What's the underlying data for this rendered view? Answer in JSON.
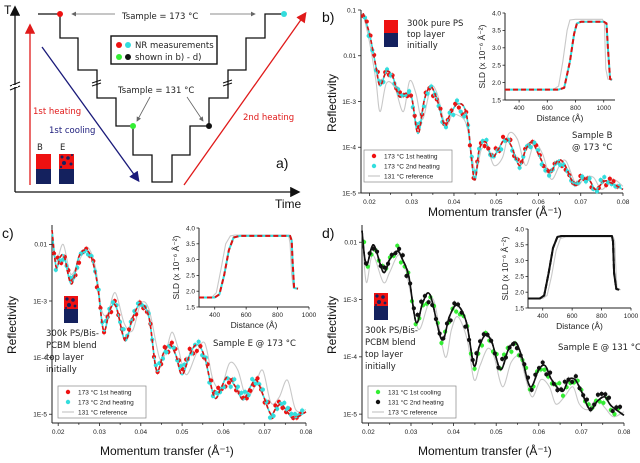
{
  "chart_data": [
    {
      "id": "a",
      "type": "diagram",
      "panel_label": "a)",
      "xlabel": "Time",
      "ylabel": "T",
      "annotations": {
        "t_high": "Tsample = 173 °C",
        "t_low": "Tsample = 131 °C",
        "legend_line1": "NR measurements",
        "legend_line2": "shown in b) - d)",
        "first_heating": "1st heating",
        "first_cooling": "1st cooling",
        "second_heating": "2nd heating",
        "sample_b": "B",
        "sample_e": "E"
      },
      "markers": [
        {
          "name": "173 °C 1st heating",
          "color": "#ee1111"
        },
        {
          "name": "173 °C 2nd heating",
          "color": "#33dddd"
        },
        {
          "name": "131 °C 1st cooling",
          "color": "#33ee33"
        },
        {
          "name": "131 °C 2nd heating",
          "color": "#111111"
        }
      ],
      "colors": {
        "heating": "#e01a1a",
        "cooling": "#1a1a7a",
        "sample_red": "#ee1111",
        "sample_blue": "#14215e"
      }
    },
    {
      "id": "b",
      "type": "line",
      "panel_label": "b)",
      "xlabel": "Momentum transfer (Å⁻¹)",
      "ylabel": "Reflectivity",
      "yscale": "log",
      "xlim": [
        0.018,
        0.08
      ],
      "ylim": [
        1e-05,
        0.1
      ],
      "xticks": [
        "0.02",
        "0.03",
        "0.04",
        "0.05",
        "0.06",
        "0.07",
        "0.08"
      ],
      "yticks": [
        "0.1",
        "0.01",
        "1E-3",
        "1E-4",
        "1E-5"
      ],
      "sample_note": [
        "Sample B",
        "@ 173 °C"
      ],
      "film_note": [
        "300k pure PS",
        "top layer",
        "initially"
      ],
      "film_type": "pure",
      "legend_placement": "bottom-left",
      "series": [
        {
          "name": "173 °C 1st heating",
          "kind": "points+fit",
          "color": "#ee1111",
          "fit": "dashed-red"
        },
        {
          "name": "173 °C 2nd heating",
          "kind": "points+fit",
          "color": "#33dddd",
          "fit": "dashed-cyan"
        },
        {
          "name": "131 °C reference",
          "kind": "line",
          "color": "#c8c8c8"
        }
      ],
      "fit_curve": {
        "x": [
          0.0185,
          0.02,
          0.0215,
          0.0225,
          0.024,
          0.0255,
          0.027,
          0.0285,
          0.03,
          0.0315,
          0.033,
          0.0345,
          0.036,
          0.0378,
          0.039,
          0.041,
          0.043,
          0.0448,
          0.046,
          0.0475,
          0.049,
          0.0505,
          0.052,
          0.0535,
          0.0555,
          0.057,
          0.0585,
          0.06,
          0.0625,
          0.0645,
          0.066,
          0.0685,
          0.07,
          0.072,
          0.0735,
          0.0755,
          0.077,
          0.08
        ],
        "y": [
          0.085,
          0.03,
          0.006,
          0.0022,
          0.0045,
          0.0035,
          0.0013,
          0.0015,
          0.0012,
          0.0002,
          0.0011,
          0.0021,
          0.0011,
          0.0003,
          0.0005,
          0.0009,
          0.0005,
          2e-05,
          9e-05,
          0.00013,
          6e-05,
          9e-05,
          0.00015,
          0.00011,
          4e-05,
          9e-05,
          0.00013,
          7e-05,
          2.8e-05,
          5e-05,
          4.5e-05,
          1.5e-05,
          2e-05,
          1.9e-05,
          1.2e-05,
          1.8e-05,
          1.7e-05,
          1.2e-05
        ]
      },
      "reference_curve": {
        "x": [
          0.0185,
          0.02,
          0.0215,
          0.0225,
          0.024,
          0.026,
          0.028,
          0.0295,
          0.031,
          0.0325,
          0.0345,
          0.036,
          0.038,
          0.0395,
          0.041,
          0.043,
          0.045,
          0.0465,
          0.048,
          0.0495,
          0.0515,
          0.053,
          0.055,
          0.057,
          0.059,
          0.061,
          0.063,
          0.065,
          0.0665,
          0.069,
          0.071,
          0.073,
          0.075,
          0.0775,
          0.08
        ],
        "y": [
          0.085,
          0.02,
          0.003,
          0.0006,
          0.0025,
          0.002,
          0.0006,
          0.0028,
          0.0015,
          0.0004,
          0.002,
          0.0015,
          0.0003,
          0.0005,
          0.0005,
          0.0003,
          3e-05,
          9e-05,
          9e-05,
          4e-05,
          6e-05,
          0.0002,
          0.00015,
          4e-05,
          0.00012,
          7e-05,
          2e-05,
          4e-05,
          5e-05,
          1.5e-05,
          2.2e-05,
          2.2e-05,
          1.2e-05,
          2e-05,
          1.4e-05
        ]
      },
      "inset": {
        "xlabel": "Distance (Å)",
        "ylabel": "SLD (x 10⁻⁶ Å⁻²)",
        "xlim": [
          300,
          1080
        ],
        "ylim": [
          1.5,
          4.0
        ],
        "xticks": [
          "400",
          "600",
          "800",
          "1000"
        ],
        "yticks": [
          "1.5",
          "2.0",
          "2.5",
          "3.0",
          "3.5",
          "4.0"
        ],
        "fit_profile": {
          "x": [
            300,
            680,
            720,
            760,
            790,
            810,
            840,
            1000,
            1020,
            1030,
            1045,
            1060
          ],
          "y": [
            1.8,
            1.8,
            1.85,
            2.6,
            3.4,
            3.7,
            3.75,
            3.75,
            3.7,
            3.0,
            2.1,
            2.08
          ]
        },
        "reference_profile": {
          "x": [
            300,
            640,
            680,
            710,
            740,
            760,
            800,
            990,
            1005,
            1015,
            1030,
            1060
          ],
          "y": [
            1.8,
            1.8,
            1.9,
            2.6,
            3.5,
            3.8,
            3.82,
            3.82,
            3.7,
            2.4,
            2.1,
            2.08
          ]
        }
      }
    },
    {
      "id": "c",
      "type": "line",
      "panel_label": "c)",
      "xlabel": "Momentum transfer (Å⁻¹)",
      "ylabel": "Reflectivity",
      "yscale": "log",
      "xlim": [
        0.0185,
        0.08
      ],
      "ylim": [
        7e-06,
        0.022
      ],
      "xticks": [
        "0.02",
        "0.03",
        "0.04",
        "0.05",
        "0.06",
        "0.07",
        "0.08"
      ],
      "yticks": [
        "0.01",
        "1E-3",
        "1E-4",
        "1E-5"
      ],
      "sample_note": [
        "Sample E @ 173 °C"
      ],
      "film_note": [
        "300k PS/Bis-",
        "PCBM blend",
        "top layer",
        "initially"
      ],
      "film_type": "blend",
      "legend_placement": "bottom-left",
      "series": [
        {
          "name": "173 °C 1st heating",
          "kind": "points+fit",
          "color": "#ee1111"
        },
        {
          "name": "173 °C 2nd heating",
          "kind": "points+fit",
          "color": "#33dddd"
        },
        {
          "name": "131 °C reference",
          "kind": "line",
          "color": "#c8c8c8"
        }
      ],
      "fit_curve": {
        "x": [
          0.0185,
          0.0195,
          0.0205,
          0.0215,
          0.0232,
          0.025,
          0.0265,
          0.028,
          0.0295,
          0.031,
          0.0325,
          0.034,
          0.0362,
          0.038,
          0.04,
          0.042,
          0.0438,
          0.0455,
          0.047,
          0.0485,
          0.05,
          0.052,
          0.0537,
          0.0555,
          0.0578,
          0.0595,
          0.061,
          0.063,
          0.0648,
          0.0665,
          0.068,
          0.0698,
          0.0715,
          0.0728,
          0.074,
          0.0755,
          0.077,
          0.08
        ],
        "y": [
          0.018,
          0.004,
          0.006,
          0.006,
          0.002,
          0.006,
          0.008,
          0.006,
          0.002,
          0.0003,
          0.0007,
          0.0008,
          0.0002,
          0.0005,
          0.0009,
          0.0005,
          6e-05,
          0.00012,
          0.00017,
          0.00011,
          5e-05,
          0.00012,
          0.00017,
          0.0001,
          2e-05,
          3e-05,
          4.5e-05,
          3e-05,
          1.8e-05,
          3e-05,
          4e-05,
          2e-05,
          1e-05,
          1.3e-05,
          1.5e-05,
          1.1e-05,
          8.5e-06,
          1.1e-05
        ]
      },
      "reference_curve": {
        "x": [
          0.0185,
          0.0195,
          0.0212,
          0.023,
          0.025,
          0.027,
          0.029,
          0.0305,
          0.032,
          0.0338,
          0.036,
          0.038,
          0.04,
          0.042,
          0.0445,
          0.046,
          0.0475,
          0.049,
          0.051,
          0.0535,
          0.0555,
          0.0575,
          0.0595,
          0.0615,
          0.0635,
          0.0655,
          0.0675,
          0.0695,
          0.0715,
          0.0735,
          0.0755,
          0.0775,
          0.08
        ],
        "y": [
          0.018,
          0.005,
          0.01,
          0.003,
          0.005,
          0.009,
          0.004,
          0.0007,
          0.0006,
          0.0014,
          0.0004,
          0.0003,
          0.0009,
          0.0007,
          0.0001,
          0.00012,
          0.00028,
          0.00015,
          5e-05,
          0.00012,
          0.00018,
          4e-05,
          3e-05,
          8e-05,
          6e-05,
          2e-05,
          3e-05,
          6e-05,
          1.6e-05,
          2e-05,
          4e-05,
          1.2e-05,
          1.2e-05
        ]
      },
      "inset": {
        "xlabel": "Distance (Å)",
        "ylabel": "SLD (x 10⁻⁶ Å⁻²)",
        "xlim": [
          300,
          1000
        ],
        "ylim": [
          1.5,
          4.0
        ],
        "xticks": [
          "400",
          "600",
          "800",
          "1000"
        ],
        "yticks": [
          "1.5",
          "2.0",
          "2.5",
          "3.0",
          "3.5",
          "4.0"
        ],
        "fit_profile": {
          "x": [
            300,
            400,
            430,
            460,
            490,
            520,
            560,
            880,
            890,
            895,
            905,
            930
          ],
          "y": [
            1.8,
            1.8,
            1.9,
            2.5,
            3.3,
            3.7,
            3.75,
            3.75,
            3.6,
            3.0,
            2.1,
            2.08
          ]
        },
        "reference_profile": {
          "x": [
            300,
            380,
            410,
            440,
            470,
            500,
            530,
            870,
            880,
            890,
            900,
            930
          ],
          "y": [
            1.8,
            1.8,
            1.95,
            2.7,
            3.5,
            3.75,
            3.78,
            3.78,
            3.5,
            2.5,
            2.1,
            2.08
          ]
        }
      }
    },
    {
      "id": "d",
      "type": "line",
      "panel_label": "d)",
      "xlabel": "Momentum transfer (Å⁻¹)",
      "ylabel": "Reflectivity",
      "yscale": "log",
      "xlim": [
        0.0185,
        0.08
      ],
      "ylim": [
        7e-06,
        0.02
      ],
      "xticks": [
        "0.02",
        "0.03",
        "0.04",
        "0.05",
        "0.06",
        "0.07",
        "0.08"
      ],
      "yticks": [
        "0.01",
        "1E-3",
        "1E-4",
        "1E-5"
      ],
      "sample_note": [
        "Sample E @ 131 °C"
      ],
      "film_note": [
        "300k PS/Bis-",
        "PCBM blend",
        "top layer",
        "initially"
      ],
      "film_type": "blend",
      "legend_placement": "bottom-left",
      "series": [
        {
          "name": "131 °C 1st cooling",
          "kind": "points+fit",
          "color": "#33ee33"
        },
        {
          "name": "131 °C 2nd heating",
          "kind": "points+fit",
          "color": "#111111"
        },
        {
          "name": "173 °C reference",
          "kind": "line",
          "color": "#c8c8c8"
        }
      ],
      "fit_curve": {
        "x": [
          0.0185,
          0.0195,
          0.0212,
          0.0235,
          0.025,
          0.0268,
          0.028,
          0.0295,
          0.0312,
          0.0328,
          0.0345,
          0.0372,
          0.039,
          0.0408,
          0.043,
          0.0448,
          0.046,
          0.0475,
          0.049,
          0.051,
          0.0528,
          0.0545,
          0.056,
          0.058,
          0.06,
          0.0615,
          0.063,
          0.0655,
          0.067,
          0.0685,
          0.07,
          0.072,
          0.0738,
          0.0755,
          0.077,
          0.08
        ],
        "y": [
          0.016,
          0.004,
          0.009,
          0.003,
          0.005,
          0.007,
          0.005,
          0.0025,
          0.0004,
          0.0009,
          0.0012,
          0.0002,
          0.0005,
          0.0008,
          0.0004,
          7e-05,
          0.00015,
          0.00024,
          0.00018,
          6e-05,
          0.00013,
          0.00018,
          0.0001,
          3e-05,
          6e-05,
          7e-05,
          4e-05,
          2.5e-05,
          4e-05,
          4e-05,
          2.5e-05,
          1.2e-05,
          1.7e-05,
          2e-05,
          1.4e-05,
          9.5e-06
        ]
      },
      "reference_curve": {
        "x": [
          0.0185,
          0.0195,
          0.021,
          0.0235,
          0.025,
          0.027,
          0.0285,
          0.03,
          0.0318,
          0.034,
          0.0355,
          0.038,
          0.0395,
          0.041,
          0.0432,
          0.0448,
          0.0462,
          0.048,
          0.0495,
          0.0515,
          0.0535,
          0.0555,
          0.057,
          0.0585,
          0.0605,
          0.0625,
          0.064,
          0.066,
          0.068,
          0.0695,
          0.0715,
          0.0735,
          0.0755,
          0.0775,
          0.08
        ],
        "y": [
          0.016,
          0.002,
          0.006,
          0.002,
          0.003,
          0.006,
          0.004,
          0.0012,
          0.0003,
          0.0008,
          0.0009,
          0.0001,
          0.0003,
          0.0005,
          0.0002,
          4e-05,
          7e-05,
          0.00014,
          0.0001,
          3e-05,
          8e-05,
          0.0001,
          4e-05,
          2e-05,
          4e-05,
          3e-05,
          1.5e-05,
          2e-05,
          3e-05,
          1.5e-05,
          1.2e-05,
          1.8e-05,
          1.3e-05,
          9e-06,
          1.1e-05
        ]
      },
      "inset": {
        "xlabel": "Distance (Å)",
        "ylabel": "SLD (x 10⁻⁶ Å⁻²)",
        "xlim": [
          300,
          1000
        ],
        "ylim": [
          1.5,
          4.0
        ],
        "xticks": [
          "400",
          "600",
          "800",
          "1000"
        ],
        "yticks": [
          "1.5",
          "2.0",
          "2.5",
          "3.0",
          "3.5",
          "4.0"
        ],
        "fit_profile": {
          "x": [
            300,
            380,
            410,
            440,
            470,
            500,
            530,
            870,
            878,
            885,
            900,
            920
          ],
          "y": [
            1.8,
            1.8,
            1.9,
            2.6,
            3.4,
            3.75,
            3.78,
            3.78,
            3.6,
            2.6,
            2.1,
            2.08
          ]
        },
        "reference_profile": {
          "x": [
            300,
            400,
            430,
            460,
            490,
            520,
            560,
            880,
            890,
            895,
            905,
            930
          ],
          "y": [
            1.8,
            1.8,
            1.9,
            2.5,
            3.3,
            3.7,
            3.75,
            3.75,
            3.6,
            3.0,
            2.1,
            2.08
          ]
        }
      }
    }
  ]
}
